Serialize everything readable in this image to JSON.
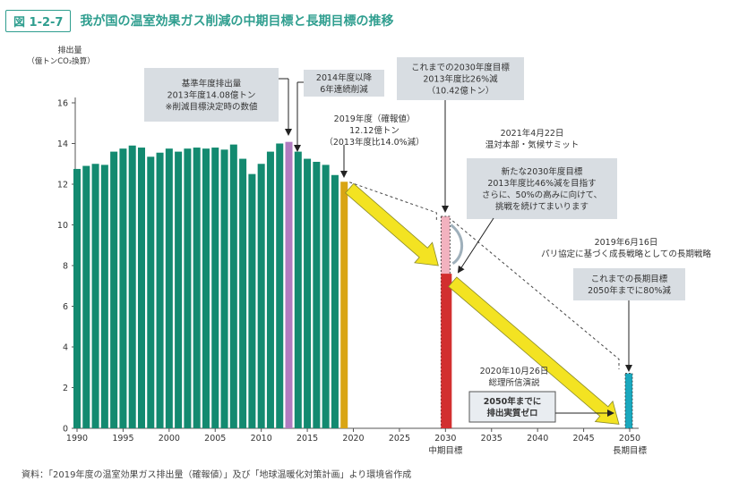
{
  "figure": {
    "number": "図 1-2-7",
    "title": "我が国の温室効果ガス削減の中期目標と長期目標の推移",
    "source": "資料：「2019年度の温室効果ガス排出量（確報値）」及び「地球温暖化対策計画」より環境省作成"
  },
  "colors": {
    "accent": "#2f9e8f",
    "bar_default": "#138a70",
    "bar_base_year": "#b07cc0",
    "bar_latest": "#d9a514",
    "target_2030_new": "#d22f2f",
    "target_2030_old": "#f2b2bf",
    "target_2050": "#1aa8be",
    "arrow": "#f3e322",
    "callout_bg": "#d8dde2"
  },
  "chart_data": {
    "type": "bar",
    "ylabel_line1": "排出量",
    "ylabel_line2": "（億トンCO₂換算）",
    "ylim": [
      0,
      16
    ],
    "yticks": [
      0,
      2,
      4,
      6,
      8,
      10,
      12,
      14,
      16
    ],
    "xlim": [
      1990,
      2050
    ],
    "xticks": [
      1990,
      1995,
      2000,
      2005,
      2010,
      2015,
      2020,
      2025,
      2030,
      2035,
      2040,
      2045,
      2050
    ],
    "xtick_sublabels": [
      {
        "x": 2030,
        "text": "中期目標"
      },
      {
        "x": 2050,
        "text": "長期目標"
      }
    ],
    "years": [
      1990,
      1991,
      1992,
      1993,
      1994,
      1995,
      1996,
      1997,
      1998,
      1999,
      2000,
      2001,
      2002,
      2003,
      2004,
      2005,
      2006,
      2007,
      2008,
      2009,
      2010,
      2011,
      2012,
      2013,
      2014,
      2015,
      2016,
      2017,
      2018,
      2019
    ],
    "values": [
      12.75,
      12.9,
      13.0,
      12.95,
      13.6,
      13.75,
      13.9,
      13.8,
      13.35,
      13.55,
      13.75,
      13.6,
      13.75,
      13.8,
      13.75,
      13.8,
      13.7,
      13.95,
      13.25,
      12.5,
      13.0,
      13.6,
      14.0,
      14.08,
      13.6,
      13.25,
      13.1,
      12.95,
      12.45,
      12.12
    ],
    "highlights": [
      {
        "year": 2013,
        "role": "base_year"
      },
      {
        "year": 2019,
        "role": "latest"
      }
    ],
    "targets": [
      {
        "year": 2030,
        "value": 10.42,
        "role": "old_2030"
      },
      {
        "year": 2030,
        "value": 7.6,
        "role": "new_2030"
      },
      {
        "year": 2050,
        "value": 2.7,
        "role": "old_2050"
      }
    ],
    "annotations": {
      "base_year": [
        "基準年度排出量",
        "2013年度14.08億トン",
        "※削減目標決定時の数値"
      ],
      "consecutive": [
        "2014年度以降",
        "6年連続削減"
      ],
      "latest": [
        "2019年度（確報値）",
        "12.12億トン",
        "（2013年度比14.0%減）"
      ],
      "old_2030": [
        "これまでの2030年度目標",
        "2013年度比26%減",
        "（10.42億トン）"
      ],
      "summit": [
        "2021年4月22日",
        "温対本部・気候サミット"
      ],
      "new_2030": [
        "新たな2030年度目標",
        "2013年度比46%減を目指す",
        "さらに、50%の高みに向けて、",
        "挑戦を続けてまいります"
      ],
      "strategy": [
        "2019年6月16日",
        "パリ協定に基づく成長戦略としての長期戦略"
      ],
      "old_2050": [
        "これまでの長期目標",
        "2050年までに80%減"
      ],
      "speech": [
        "2020年10月26日",
        "総理所信演説"
      ],
      "net_zero": [
        "2050年までに",
        "排出実質ゼロ"
      ]
    }
  }
}
